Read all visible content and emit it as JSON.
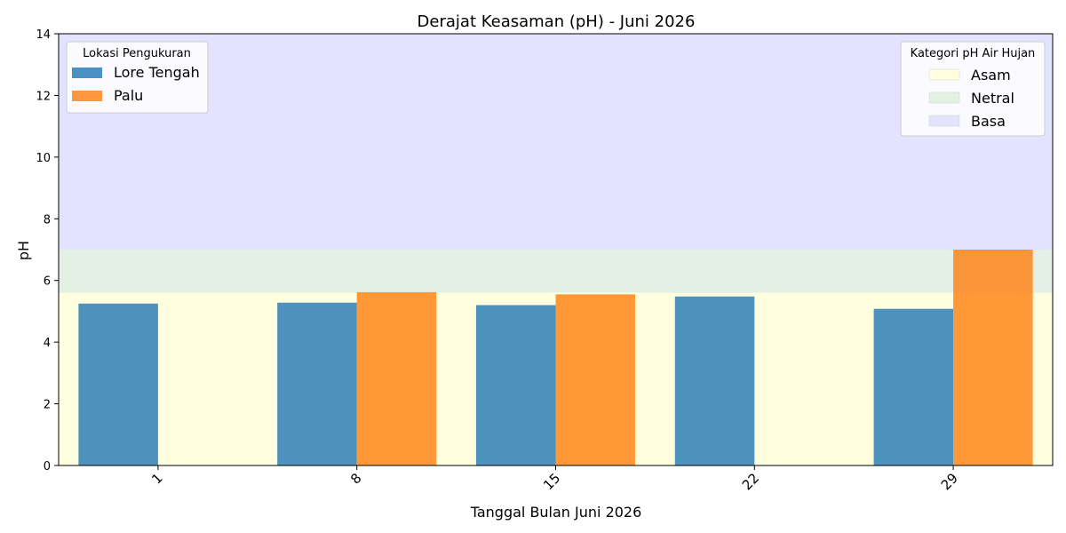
{
  "chart_data": {
    "type": "bar",
    "title": "Derajat Keasaman (pH) - Juni 2026",
    "xlabel": "Tanggal Bulan Juni 2026",
    "ylabel": "pH",
    "categories": [
      "1",
      "8",
      "15",
      "22",
      "29"
    ],
    "series": [
      {
        "name": "Lore Tengah",
        "values": [
          5.25,
          5.28,
          5.2,
          5.48,
          5.08
        ],
        "color": "#1f77b4"
      },
      {
        "name": "Palu",
        "values": [
          null,
          5.62,
          5.55,
          null,
          7.0
        ],
        "color": "#ff7f0e"
      }
    ],
    "ylim": [
      0,
      14
    ],
    "yticks": [
      0,
      2,
      4,
      6,
      8,
      10,
      12,
      14
    ],
    "bands": [
      {
        "name": "Asam",
        "from": 0,
        "to": 5.6,
        "color": "#ffffe0"
      },
      {
        "name": "Netral",
        "from": 5.6,
        "to": 7,
        "color": "#e3f0e3"
      },
      {
        "name": "Basa",
        "from": 7,
        "to": 14,
        "color": "#e3e3ff"
      }
    ],
    "legend_series_title": "Lokasi Pengukuran",
    "legend_series_position": "top-left",
    "legend_bands_title": "Kategori pH Air Hujan",
    "legend_bands_position": "top-right",
    "grid": false
  }
}
